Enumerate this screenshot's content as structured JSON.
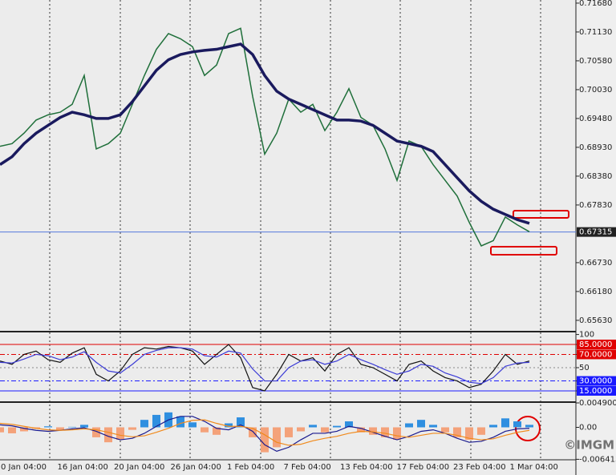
{
  "chart_data": [
    {
      "type": "line",
      "ylim": [
        0.6543,
        0.7174
      ],
      "yticks": [
        {
          "value": 0.7168,
          "label": "0.71680"
        },
        {
          "value": 0.7113,
          "label": "0.71130"
        },
        {
          "value": 0.7058,
          "label": "0.70580"
        },
        {
          "value": 0.7003,
          "label": "0.70030"
        },
        {
          "value": 0.6948,
          "label": "0.69480"
        },
        {
          "value": 0.6893,
          "label": "0.68930"
        },
        {
          "value": 0.6838,
          "label": "0.68380"
        },
        {
          "value": 0.6783,
          "label": "0.67830"
        },
        {
          "value": 0.6673,
          "label": "0.66730"
        },
        {
          "value": 0.6618,
          "label": "0.66180"
        },
        {
          "value": 0.6563,
          "label": "0.65630"
        }
      ],
      "last_price": 0.67315,
      "series": [
        {
          "color": "#1f6f3a",
          "values": [
            0.6895,
            0.69,
            0.692,
            0.6945,
            0.6955,
            0.696,
            0.6975,
            0.703,
            0.689,
            0.69,
            0.692,
            0.6975,
            0.703,
            0.708,
            0.711,
            0.71,
            0.7085,
            0.703,
            0.705,
            0.711,
            0.712,
            0.699,
            0.688,
            0.692,
            0.6985,
            0.696,
            0.6975,
            0.6925,
            0.696,
            0.7005,
            0.695,
            0.6935,
            0.689,
            0.683,
            0.6905,
            0.6895,
            0.686,
            0.683,
            0.68,
            0.675,
            0.6705,
            0.6715,
            0.676,
            0.6745,
            0.6732
          ]
        },
        {
          "color": "#1a1a5e",
          "values": [
            0.686,
            0.6875,
            0.69,
            0.692,
            0.6935,
            0.695,
            0.696,
            0.6955,
            0.6948,
            0.6948,
            0.6955,
            0.698,
            0.701,
            0.704,
            0.706,
            0.707,
            0.7075,
            0.7078,
            0.708,
            0.7085,
            0.709,
            0.707,
            0.703,
            0.7,
            0.6985,
            0.6975,
            0.6965,
            0.6955,
            0.6945,
            0.6945,
            0.6943,
            0.6935,
            0.692,
            0.6905,
            0.69,
            0.6895,
            0.6885,
            0.686,
            0.6835,
            0.681,
            0.679,
            0.6775,
            0.6765,
            0.6755,
            0.6748
          ]
        }
      ]
    },
    {
      "type": "line",
      "ylim": [
        0,
        100
      ],
      "yticks": [
        100,
        {
          "value": 85,
          "label": "85.0000"
        },
        {
          "value": 70,
          "label": "70.0000"
        },
        50,
        {
          "value": 30,
          "label": "30.0000"
        },
        {
          "value": 15,
          "label": "15.0000"
        }
      ],
      "series": [
        {
          "color": "#111111",
          "values": [
            60,
            55,
            70,
            75,
            62,
            58,
            72,
            80,
            40,
            30,
            45,
            70,
            80,
            78,
            82,
            80,
            75,
            55,
            70,
            85,
            65,
            20,
            15,
            40,
            70,
            60,
            65,
            45,
            70,
            80,
            55,
            50,
            40,
            30,
            55,
            60,
            45,
            35,
            30,
            20,
            25,
            45,
            70,
            55,
            60
          ]
        },
        {
          "color": "#3b3bd6",
          "values": [
            58,
            57,
            63,
            70,
            68,
            62,
            66,
            74,
            58,
            45,
            42,
            55,
            70,
            76,
            80,
            80,
            78,
            68,
            66,
            75,
            72,
            48,
            30,
            30,
            50,
            60,
            62,
            55,
            60,
            70,
            62,
            55,
            47,
            40,
            45,
            55,
            52,
            42,
            36,
            28,
            26,
            35,
            52,
            57,
            58
          ]
        }
      ]
    },
    {
      "type": "bar",
      "ylim": [
        -0.0064131,
        0.0049007
      ],
      "yticks": [
        {
          "value": 0.0049007,
          "label": "0.0049007"
        },
        {
          "value": 0,
          "label": "0.00"
        },
        {
          "value": -0.0064131,
          "label": "-0.0064131"
        }
      ],
      "colors": {
        "positive": "#2f8fe0",
        "negative": "#f4a27a"
      },
      "values": [
        -0.001,
        -0.0012,
        -0.0008,
        -0.0003,
        0.0002,
        -0.0005,
        0.0001,
        0.0005,
        -0.002,
        -0.003,
        -0.0025,
        -0.0005,
        0.0015,
        0.0025,
        0.003,
        0.0022,
        0.001,
        -0.001,
        -0.0015,
        0.0008,
        0.002,
        -0.002,
        -0.005,
        -0.004,
        -0.002,
        -0.0008,
        0.0005,
        -0.001,
        0.0003,
        0.0012,
        -0.001,
        -0.0015,
        -0.002,
        -0.0025,
        0.0008,
        0.0015,
        0.0005,
        -0.001,
        -0.002,
        -0.0025,
        -0.0015,
        0.0005,
        0.0018,
        0.0012,
        0.0005
      ],
      "series": [
        {
          "color": "#1a1a8e",
          "values": [
            0.0005,
            0.0003,
            -0.0002,
            -0.0006,
            -0.0008,
            -0.0006,
            -0.0003,
            -0.0001,
            -0.0008,
            -0.0018,
            -0.0025,
            -0.0022,
            -0.0012,
            0.0002,
            0.0015,
            0.0022,
            0.0022,
            0.0012,
            -0.0002,
            -0.0005,
            0.0005,
            -0.0008,
            -0.0035,
            -0.0048,
            -0.004,
            -0.0025,
            -0.0012,
            -0.0012,
            -0.0008,
            0.0002,
            -0.0002,
            -0.001,
            -0.0018,
            -0.0025,
            -0.0018,
            -0.0008,
            -0.0005,
            -0.0012,
            -0.0022,
            -0.003,
            -0.0028,
            -0.002,
            -0.0008,
            -0.0003,
            -0.0002
          ]
        },
        {
          "color": "#f08a1c",
          "values": [
            0.0008,
            0.0006,
            0.0002,
            -0.0002,
            -0.0005,
            -0.0006,
            -0.0005,
            -0.0003,
            -0.0005,
            -0.001,
            -0.0016,
            -0.0019,
            -0.0017,
            -0.001,
            -0.0002,
            0.0008,
            0.0014,
            0.0015,
            0.0008,
            0.0002,
            0.0002,
            -0.0002,
            -0.0015,
            -0.003,
            -0.0036,
            -0.0034,
            -0.0027,
            -0.0022,
            -0.0018,
            -0.0012,
            -0.0008,
            -0.0009,
            -0.0012,
            -0.0017,
            -0.002,
            -0.0016,
            -0.0012,
            -0.0012,
            -0.0016,
            -0.0022,
            -0.0025,
            -0.0023,
            -0.0016,
            -0.001,
            -0.0006
          ]
        }
      ],
      "x_tick_labels": [
        "0 Jan 04:00",
        "16 Jan 04:00",
        "20 Jan 04:00",
        "26 Jan 04:00",
        "1 Feb 04:00",
        "7 Feb 04:00",
        "13 Feb 04:00",
        "17 Feb 04:00",
        "23 Feb 04:00",
        "1 Mar 04:00"
      ]
    }
  ],
  "watermark": "©IMGM"
}
